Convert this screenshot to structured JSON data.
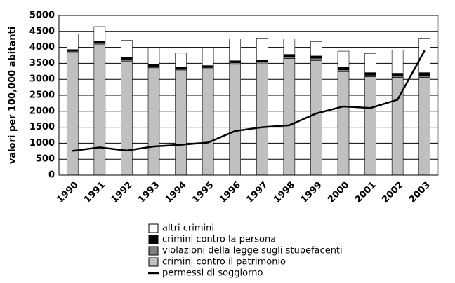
{
  "chart_data": {
    "type": "bar",
    "stacked": true,
    "y_label": "valori per 100,000 abitanti",
    "categories": [
      "1990",
      "1991",
      "1992",
      "1993",
      "1994",
      "1995",
      "1996",
      "1997",
      "1998",
      "1999",
      "2000",
      "2001",
      "2002",
      "2003"
    ],
    "series": [
      {
        "name": "altri crimini",
        "color": "#ffffff",
        "values": [
          490,
          450,
          530,
          520,
          450,
          560,
          690,
          680,
          490,
          450,
          510,
          600,
          720,
          1080
        ]
      },
      {
        "name": "crimini contro la persona",
        "color": "#000000",
        "values": [
          50,
          50,
          60,
          50,
          60,
          60,
          60,
          70,
          70,
          70,
          70,
          80,
          80,
          90
        ]
      },
      {
        "name": "violazioni della legge sugli stupefacenti",
        "color": "#808080",
        "values": [
          50,
          50,
          60,
          50,
          50,
          50,
          50,
          60,
          60,
          70,
          60,
          50,
          50,
          60
        ]
      },
      {
        "name": "crimini contro il patrimonio",
        "color": "#c0c0c0",
        "values": [
          3830,
          4100,
          3570,
          3360,
          3260,
          3320,
          3470,
          3480,
          3650,
          3590,
          3240,
          3080,
          3060,
          3060
        ]
      },
      {
        "name": "permessi di soggiorno",
        "type": "line",
        "color": "#000000",
        "values": [
          760,
          870,
          770,
          900,
          950,
          1020,
          1380,
          1500,
          1560,
          1930,
          2150,
          2100,
          2360,
          3900
        ]
      }
    ],
    "ylim": [
      0,
      5000
    ],
    "yticks": [
      0,
      500,
      1000,
      1500,
      2000,
      2500,
      3000,
      3500,
      4000,
      4500,
      5000
    ],
    "grid": true
  }
}
